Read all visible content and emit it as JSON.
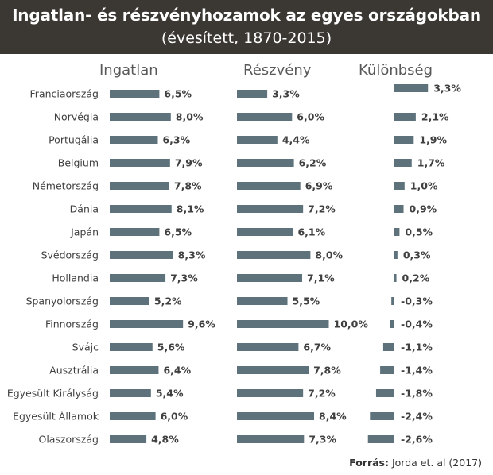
{
  "title": "Ingatlan- és részvényhozamok az egyes országokban",
  "subtitle": "(évesített, 1870-2015)",
  "source_label": "Forrás:",
  "source_text": "Jorda et. al (2017)",
  "colors": {
    "bar": "#5e727c",
    "title_background": "#3b3834"
  },
  "chart_data": {
    "type": "bar",
    "orientation": "horizontal",
    "categories": [
      "Franciaország",
      "Norvégia",
      "Portugália",
      "Belgium",
      "Németország",
      "Dánia",
      "Japán",
      "Svédország",
      "Hollandia",
      "Spanyolország",
      "Finnország",
      "Svájc",
      "Ausztrália",
      "Egyesült Királyság",
      "Egyesült Államok",
      "Olaszország"
    ],
    "series": [
      {
        "name": "Ingatlan",
        "values": [
          6.5,
          8.0,
          6.3,
          7.9,
          7.8,
          8.1,
          6.5,
          8.3,
          7.3,
          5.2,
          9.6,
          5.6,
          6.4,
          5.4,
          6.0,
          4.8
        ],
        "labels": [
          "6,5%",
          "8,0%",
          "6,3%",
          "7,9%",
          "7,8%",
          "8,1%",
          "6,5%",
          "8,3%",
          "7,3%",
          "5,2%",
          "9,6%",
          "5,6%",
          "6,4%",
          "5,4%",
          "6,0%",
          "4,8%"
        ]
      },
      {
        "name": "Részvény",
        "values": [
          3.3,
          6.0,
          4.4,
          6.2,
          6.9,
          7.2,
          6.1,
          8.0,
          7.1,
          5.5,
          10.0,
          6.7,
          7.8,
          7.2,
          8.4,
          7.3
        ],
        "labels": [
          "3,3%",
          "6,0%",
          "4,4%",
          "6,2%",
          "6,9%",
          "7,2%",
          "6,1%",
          "8,0%",
          "7,1%",
          "5,5%",
          "10,0%",
          "6,7%",
          "7,8%",
          "7,2%",
          "8,4%",
          "7,3%"
        ]
      },
      {
        "name": "Különbség",
        "values": [
          3.3,
          2.1,
          1.9,
          1.7,
          1.0,
          0.9,
          0.5,
          0.3,
          0.2,
          -0.3,
          -0.4,
          -1.1,
          -1.4,
          -1.8,
          -2.4,
          -2.6
        ],
        "labels": [
          "3,3%",
          "2,1%",
          "1,9%",
          "1,7%",
          "1,0%",
          "0,9%",
          "0,5%",
          "0,3%",
          "0,2%",
          "-0,3%",
          "-0,4%",
          "-1,1%",
          "-1,4%",
          "-1,8%",
          "-2,4%",
          "-2,6%"
        ]
      }
    ]
  }
}
